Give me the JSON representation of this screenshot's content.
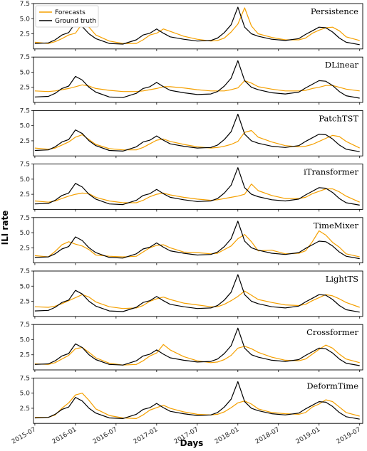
{
  "chart_data": {
    "type": "line",
    "xlabel": "Days",
    "ylabel": "ILI rate",
    "x_ticks": [
      "2015-07",
      "2016-01",
      "2016-07",
      "2017-01",
      "2017-07",
      "2018-01",
      "2018-07",
      "2019-01",
      "2019-07"
    ],
    "x_range": [
      "2015-07",
      "2019-07"
    ],
    "ylim": [
      0,
      7.5
    ],
    "y_ticks": [
      "2.5",
      "5.0",
      "7.5"
    ],
    "legend": {
      "location": "top-left",
      "entries": [
        "Forecasts",
        "Ground truth"
      ]
    },
    "colors": {
      "forecasts": "#f5a000",
      "ground_truth": "#000000"
    },
    "ground_truth": {
      "x": [
        "2015-07",
        "2015-09",
        "2015-10",
        "2015-11",
        "2015-12",
        "2016-01",
        "2016-02",
        "2016-03",
        "2016-04",
        "2016-06",
        "2016-08",
        "2016-10",
        "2016-11",
        "2016-12",
        "2017-01",
        "2017-02",
        "2017-03",
        "2017-05",
        "2017-07",
        "2017-09",
        "2017-10",
        "2017-11",
        "2017-12",
        "2018-01",
        "2018-02",
        "2018-03",
        "2018-04",
        "2018-06",
        "2018-08",
        "2018-10",
        "2018-11",
        "2018-12",
        "2019-01",
        "2019-02",
        "2019-03",
        "2019-04",
        "2019-05",
        "2019-07"
      ],
      "y": [
        0.9,
        1.0,
        1.5,
        2.3,
        2.7,
        4.3,
        3.7,
        2.5,
        1.7,
        0.9,
        0.8,
        1.5,
        2.3,
        2.6,
        3.3,
        2.6,
        2.0,
        1.6,
        1.3,
        1.4,
        1.8,
        2.7,
        4.0,
        6.9,
        3.6,
        2.5,
        2.1,
        1.6,
        1.4,
        1.7,
        2.4,
        3.0,
        3.6,
        3.5,
        2.8,
        1.8,
        1.1,
        0.7
      ]
    },
    "panels": [
      {
        "name": "Persistence",
        "forecast": [
          1.1,
          0.9,
          1.2,
          1.7,
          2.3,
          2.6,
          4.2,
          3.6,
          2.3,
          1.3,
          0.9,
          0.9,
          1.5,
          2.3,
          2.6,
          3.3,
          2.9,
          2.1,
          1.6,
          1.3,
          1.4,
          1.8,
          2.8,
          4.1,
          6.8,
          3.8,
          2.5,
          1.9,
          1.5,
          1.5,
          1.8,
          2.6,
          3.1,
          3.5,
          3.6,
          3.0,
          2.0,
          1.4
        ]
      },
      {
        "name": "DLinear",
        "forecast": [
          1.9,
          1.8,
          1.9,
          2.1,
          2.3,
          2.6,
          2.9,
          2.7,
          2.3,
          2.0,
          1.8,
          1.8,
          1.9,
          2.1,
          2.3,
          2.6,
          2.6,
          2.4,
          2.1,
          1.9,
          1.9,
          1.9,
          2.1,
          2.4,
          3.6,
          3.2,
          2.6,
          2.2,
          1.9,
          1.9,
          2.0,
          2.3,
          2.5,
          2.8,
          2.8,
          2.5,
          2.2,
          1.9
        ]
      },
      {
        "name": "PatchTST",
        "forecast": [
          1.3,
          1.1,
          1.3,
          1.8,
          2.3,
          3.1,
          3.5,
          2.7,
          1.9,
          1.2,
          1.0,
          1.0,
          1.4,
          2.0,
          2.6,
          2.8,
          2.4,
          1.9,
          1.5,
          1.3,
          1.4,
          1.6,
          1.9,
          2.4,
          3.9,
          4.2,
          3.1,
          2.3,
          1.7,
          1.5,
          1.6,
          1.9,
          2.4,
          2.9,
          3.4,
          3.2,
          2.4,
          1.3
        ]
      },
      {
        "name": "iTransformer",
        "forecast": [
          1.4,
          1.2,
          1.4,
          1.8,
          2.2,
          2.5,
          2.7,
          2.6,
          2.0,
          1.4,
          1.1,
          1.1,
          1.5,
          2.1,
          2.5,
          2.7,
          2.4,
          2.0,
          1.7,
          1.5,
          1.6,
          1.8,
          2.0,
          2.2,
          2.5,
          4.2,
          3.1,
          2.3,
          1.8,
          1.8,
          2.0,
          2.6,
          3.0,
          3.4,
          3.4,
          2.9,
          2.2,
          1.2
        ]
      },
      {
        "name": "TimeMixer",
        "forecast": [
          1.2,
          1.0,
          1.9,
          3.0,
          3.5,
          3.1,
          2.8,
          2.2,
          1.3,
          1.1,
          1.0,
          1.1,
          1.8,
          2.5,
          2.9,
          3.0,
          2.5,
          1.8,
          1.7,
          1.5,
          1.6,
          2.2,
          2.8,
          4.0,
          4.7,
          3.5,
          2.0,
          2.1,
          1.5,
          1.6,
          2.0,
          3.5,
          5.3,
          4.6,
          3.4,
          2.6,
          1.5,
          1.0
        ]
      },
      {
        "name": "LightTS",
        "forecast": [
          1.6,
          1.5,
          1.7,
          2.1,
          2.6,
          3.1,
          3.6,
          3.2,
          2.4,
          1.6,
          1.3,
          1.4,
          1.8,
          2.5,
          2.9,
          3.2,
          2.8,
          2.2,
          1.9,
          1.6,
          1.6,
          2.0,
          2.6,
          3.3,
          4.2,
          3.5,
          2.8,
          2.3,
          1.9,
          1.8,
          2.0,
          2.6,
          3.1,
          3.6,
          3.4,
          2.9,
          2.3,
          1.5
        ]
      },
      {
        "name": "Crossformer",
        "forecast": [
          1.0,
          0.9,
          1.2,
          1.8,
          2.4,
          3.5,
          3.7,
          2.9,
          2.0,
          1.1,
          0.8,
          0.9,
          1.5,
          2.3,
          2.8,
          4.2,
          3.3,
          2.2,
          1.5,
          1.2,
          1.3,
          1.7,
          2.4,
          3.6,
          3.9,
          3.5,
          2.9,
          2.1,
          1.6,
          1.5,
          1.8,
          2.6,
          3.4,
          4.1,
          3.6,
          2.6,
          1.8,
          1.2
        ]
      },
      {
        "name": "DeformTime",
        "forecast": [
          1.0,
          1.0,
          1.4,
          2.5,
          3.4,
          4.7,
          5.0,
          3.8,
          2.4,
          1.3,
          0.9,
          0.8,
          1.4,
          2.2,
          2.6,
          3.0,
          2.5,
          1.9,
          1.5,
          1.4,
          1.5,
          1.9,
          2.6,
          3.4,
          3.7,
          3.2,
          2.4,
          1.8,
          1.6,
          1.5,
          1.8,
          2.7,
          3.2,
          3.9,
          3.6,
          2.7,
          1.8,
          1.2
        ]
      }
    ]
  }
}
